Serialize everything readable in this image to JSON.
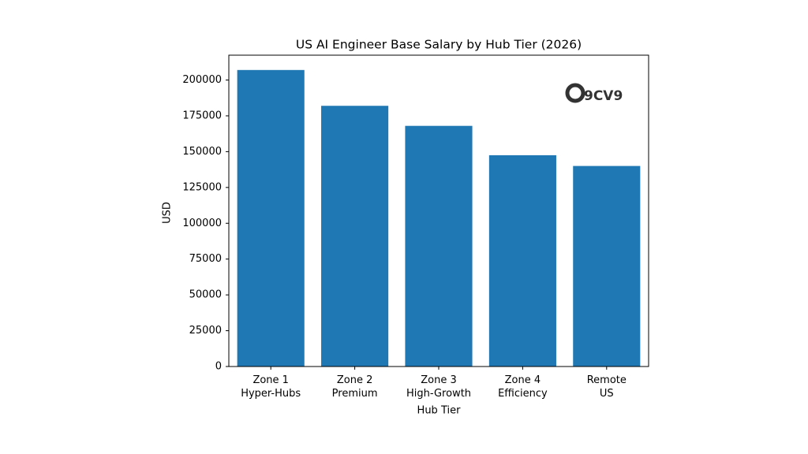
{
  "chart_data": {
    "type": "bar",
    "title": "US AI Engineer Base Salary by Hub Tier (2026)",
    "x_label": "Hub Tier",
    "y_label": "USD",
    "watermark": "9CV9",
    "categories": [
      "Zone 1\nHyper-Hubs",
      "Zone 2\nPremium",
      "Zone 3\nHigh-Growth",
      "Zone 4\nEfficiency",
      "Remote\nUS"
    ],
    "values": [
      207000,
      182000,
      168000,
      147500,
      140000
    ],
    "color": "#1f77b4",
    "ylim": [
      0,
      217350
    ],
    "yticks": [
      0,
      25000,
      50000,
      75000,
      100000,
      125000,
      150000,
      175000,
      200000
    ],
    "grid": false
  }
}
